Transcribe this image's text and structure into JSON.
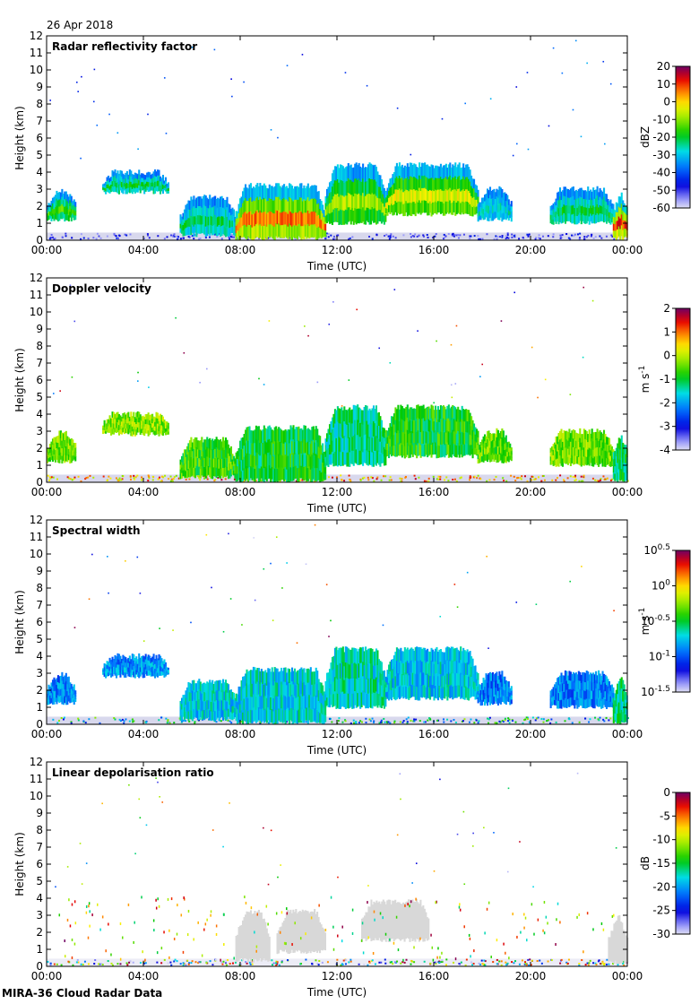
{
  "date": "26 Apr 2018",
  "footer": "MIRA-36 Cloud Radar Data",
  "colors": {
    "background_echo": "#c8c8e6",
    "ldr_echo": "#d8d8d8",
    "axis": "#000000"
  },
  "chart_data": [
    {
      "type": "heatmap",
      "title": "Radar reflectivity factor",
      "xlabel": "Time (UTC)",
      "ylabel": "Height (km)",
      "xlim": [
        0,
        24
      ],
      "ylim": [
        0,
        12
      ],
      "x_ticks": [
        "00:00",
        "04:00",
        "08:00",
        "12:00",
        "16:00",
        "20:00",
        "00:00"
      ],
      "y_ticks": [
        "0",
        "1",
        "2",
        "3",
        "4",
        "5",
        "6",
        "7",
        "8",
        "9",
        "10",
        "11",
        "12"
      ],
      "colorbar": {
        "label": "dBZ",
        "range": [
          -60,
          20
        ],
        "ticks": [
          "20",
          "10",
          "0",
          "-10",
          "-20",
          "-30",
          "-40",
          "-50",
          "-60"
        ]
      },
      "cloud_layers": [
        {
          "start": 0.0,
          "end": 1.2,
          "base": 1.2,
          "top": 2.9,
          "level": 0.58
        },
        {
          "start": 2.3,
          "end": 5.0,
          "base": 2.8,
          "top": 4.0,
          "level": 0.5
        },
        {
          "start": 5.5,
          "end": 7.8,
          "base": 0.3,
          "top": 2.5,
          "level": 0.48
        },
        {
          "start": 7.8,
          "end": 11.5,
          "base": 0.1,
          "top": 3.2,
          "level": 0.85
        },
        {
          "start": 11.5,
          "end": 14.0,
          "base": 1.0,
          "top": 4.4,
          "level": 0.66
        },
        {
          "start": 14.0,
          "end": 17.8,
          "base": 1.5,
          "top": 4.4,
          "level": 0.72
        },
        {
          "start": 17.8,
          "end": 19.2,
          "base": 1.2,
          "top": 3.0,
          "level": 0.42
        },
        {
          "start": 20.8,
          "end": 23.4,
          "base": 1.0,
          "top": 3.0,
          "level": 0.5
        },
        {
          "start": 23.4,
          "end": 24.0,
          "base": 0.1,
          "top": 3.2,
          "level": 0.9
        }
      ]
    },
    {
      "type": "heatmap",
      "title": "Doppler velocity",
      "xlabel": "Time (UTC)",
      "ylabel": "Height (km)",
      "xlim": [
        0,
        24
      ],
      "ylim": [
        0,
        12
      ],
      "x_ticks": [
        "00:00",
        "04:00",
        "08:00",
        "12:00",
        "16:00",
        "20:00",
        "00:00"
      ],
      "y_ticks": [
        "0",
        "1",
        "2",
        "3",
        "4",
        "5",
        "6",
        "7",
        "8",
        "9",
        "10",
        "11",
        "12"
      ],
      "colorbar": {
        "label": "m s",
        "label_sup": "-1",
        "range": [
          -4,
          2
        ],
        "ticks": [
          "2",
          "1",
          "0",
          "-1",
          "-2",
          "-3",
          "-4"
        ]
      },
      "cloud_layers": [
        {
          "start": 0.0,
          "end": 1.2,
          "base": 1.2,
          "top": 2.9,
          "level": 0.6
        },
        {
          "start": 2.3,
          "end": 5.0,
          "base": 2.8,
          "top": 4.0,
          "level": 0.62
        },
        {
          "start": 5.5,
          "end": 7.8,
          "base": 0.3,
          "top": 2.5,
          "level": 0.55
        },
        {
          "start": 7.8,
          "end": 11.5,
          "base": 0.1,
          "top": 3.2,
          "level": 0.5
        },
        {
          "start": 11.5,
          "end": 14.0,
          "base": 1.0,
          "top": 4.4,
          "level": 0.45
        },
        {
          "start": 14.0,
          "end": 17.8,
          "base": 1.5,
          "top": 4.4,
          "level": 0.52
        },
        {
          "start": 17.8,
          "end": 19.2,
          "base": 1.2,
          "top": 3.0,
          "level": 0.58
        },
        {
          "start": 20.8,
          "end": 23.4,
          "base": 1.0,
          "top": 3.0,
          "level": 0.6
        },
        {
          "start": 23.4,
          "end": 24.0,
          "base": 0.1,
          "top": 3.2,
          "level": 0.48
        }
      ]
    },
    {
      "type": "heatmap",
      "title": "Spectral width",
      "xlabel": "Time (UTC)",
      "ylabel": "Height (km)",
      "xlim": [
        0,
        24
      ],
      "ylim": [
        0,
        12
      ],
      "x_ticks": [
        "00:00",
        "04:00",
        "08:00",
        "12:00",
        "16:00",
        "20:00",
        "00:00"
      ],
      "y_ticks": [
        "0",
        "1",
        "2",
        "3",
        "4",
        "5",
        "6",
        "7",
        "8",
        "9",
        "10",
        "11",
        "12"
      ],
      "colorbar": {
        "label": "m s",
        "label_sup": "-1",
        "range": [
          -1.5,
          0.5
        ],
        "ticks": [
          {
            "base": "10",
            "exp": "0.5"
          },
          {
            "base": "10",
            "exp": "0"
          },
          {
            "base": "10",
            "exp": "-0.5"
          },
          {
            "base": "10",
            "exp": "-1"
          },
          {
            "base": "10",
            "exp": "-1.5"
          }
        ]
      },
      "cloud_layers": [
        {
          "start": 0.0,
          "end": 1.2,
          "base": 1.2,
          "top": 2.9,
          "level": 0.3
        },
        {
          "start": 2.3,
          "end": 5.0,
          "base": 2.8,
          "top": 4.0,
          "level": 0.32
        },
        {
          "start": 5.5,
          "end": 7.8,
          "base": 0.3,
          "top": 2.5,
          "level": 0.38
        },
        {
          "start": 7.8,
          "end": 11.5,
          "base": 0.1,
          "top": 3.2,
          "level": 0.4
        },
        {
          "start": 11.5,
          "end": 14.0,
          "base": 1.0,
          "top": 4.4,
          "level": 0.42
        },
        {
          "start": 14.0,
          "end": 17.8,
          "base": 1.5,
          "top": 4.4,
          "level": 0.38
        },
        {
          "start": 17.8,
          "end": 19.2,
          "base": 1.2,
          "top": 3.0,
          "level": 0.3
        },
        {
          "start": 20.8,
          "end": 23.4,
          "base": 1.0,
          "top": 3.0,
          "level": 0.3
        },
        {
          "start": 23.4,
          "end": 24.0,
          "base": 0.1,
          "top": 3.2,
          "level": 0.45
        }
      ]
    },
    {
      "type": "heatmap",
      "title": "Linear depolarisation ratio",
      "xlabel": "Time (UTC)",
      "ylabel": "Height (km)",
      "xlim": [
        0,
        24
      ],
      "ylim": [
        0,
        12
      ],
      "x_ticks": [
        "00:00",
        "04:00",
        "08:00",
        "12:00",
        "16:00",
        "20:00",
        "00:00"
      ],
      "y_ticks": [
        "0",
        "1",
        "2",
        "3",
        "4",
        "5",
        "6",
        "7",
        "8",
        "9",
        "10",
        "11",
        "12"
      ],
      "colorbar": {
        "label": "dB",
        "range": [
          -30,
          0
        ],
        "ticks": [
          "0",
          "-5",
          "-10",
          "-15",
          "-20",
          "-25",
          "-30"
        ]
      },
      "cloud_layers": [
        {
          "start": 7.8,
          "end": 9.2,
          "base": 0.3,
          "top": 3.2,
          "level": 0
        },
        {
          "start": 9.5,
          "end": 11.5,
          "base": 0.8,
          "top": 3.2,
          "level": 0
        },
        {
          "start": 13.0,
          "end": 15.8,
          "base": 1.5,
          "top": 3.8,
          "level": 0
        },
        {
          "start": 23.2,
          "end": 24.0,
          "base": 0.2,
          "top": 3.0,
          "level": 0
        }
      ]
    }
  ]
}
